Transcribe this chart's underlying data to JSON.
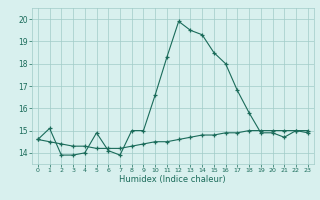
{
  "x": [
    0,
    1,
    2,
    3,
    4,
    5,
    6,
    7,
    8,
    9,
    10,
    11,
    12,
    13,
    14,
    15,
    16,
    17,
    18,
    19,
    20,
    21,
    22,
    23
  ],
  "y_main": [
    14.6,
    15.1,
    13.9,
    13.9,
    14.0,
    14.9,
    14.1,
    13.9,
    15.0,
    15.0,
    16.6,
    18.3,
    19.9,
    19.5,
    19.3,
    18.5,
    18.0,
    16.8,
    15.8,
    14.9,
    14.9,
    14.7,
    15.0,
    14.9
  ],
  "y_flat": [
    14.6,
    14.5,
    14.4,
    14.3,
    14.3,
    14.2,
    14.2,
    14.2,
    14.3,
    14.4,
    14.5,
    14.5,
    14.6,
    14.7,
    14.8,
    14.8,
    14.9,
    14.9,
    15.0,
    15.0,
    15.0,
    15.0,
    15.0,
    15.0
  ],
  "xlim": [
    -0.5,
    23.5
  ],
  "ylim": [
    13.5,
    20.5
  ],
  "yticks": [
    14,
    15,
    16,
    17,
    18,
    19,
    20
  ],
  "xticks": [
    0,
    1,
    2,
    3,
    4,
    5,
    6,
    7,
    8,
    9,
    10,
    11,
    12,
    13,
    14,
    15,
    16,
    17,
    18,
    19,
    20,
    21,
    22,
    23
  ],
  "xlabel": "Humidex (Indice chaleur)",
  "line_color": "#1a6b5a",
  "bg_color": "#d8f0ee",
  "grid_color": "#a0ccc8",
  "marker": "+",
  "marker_size": 3,
  "linewidth": 0.8
}
